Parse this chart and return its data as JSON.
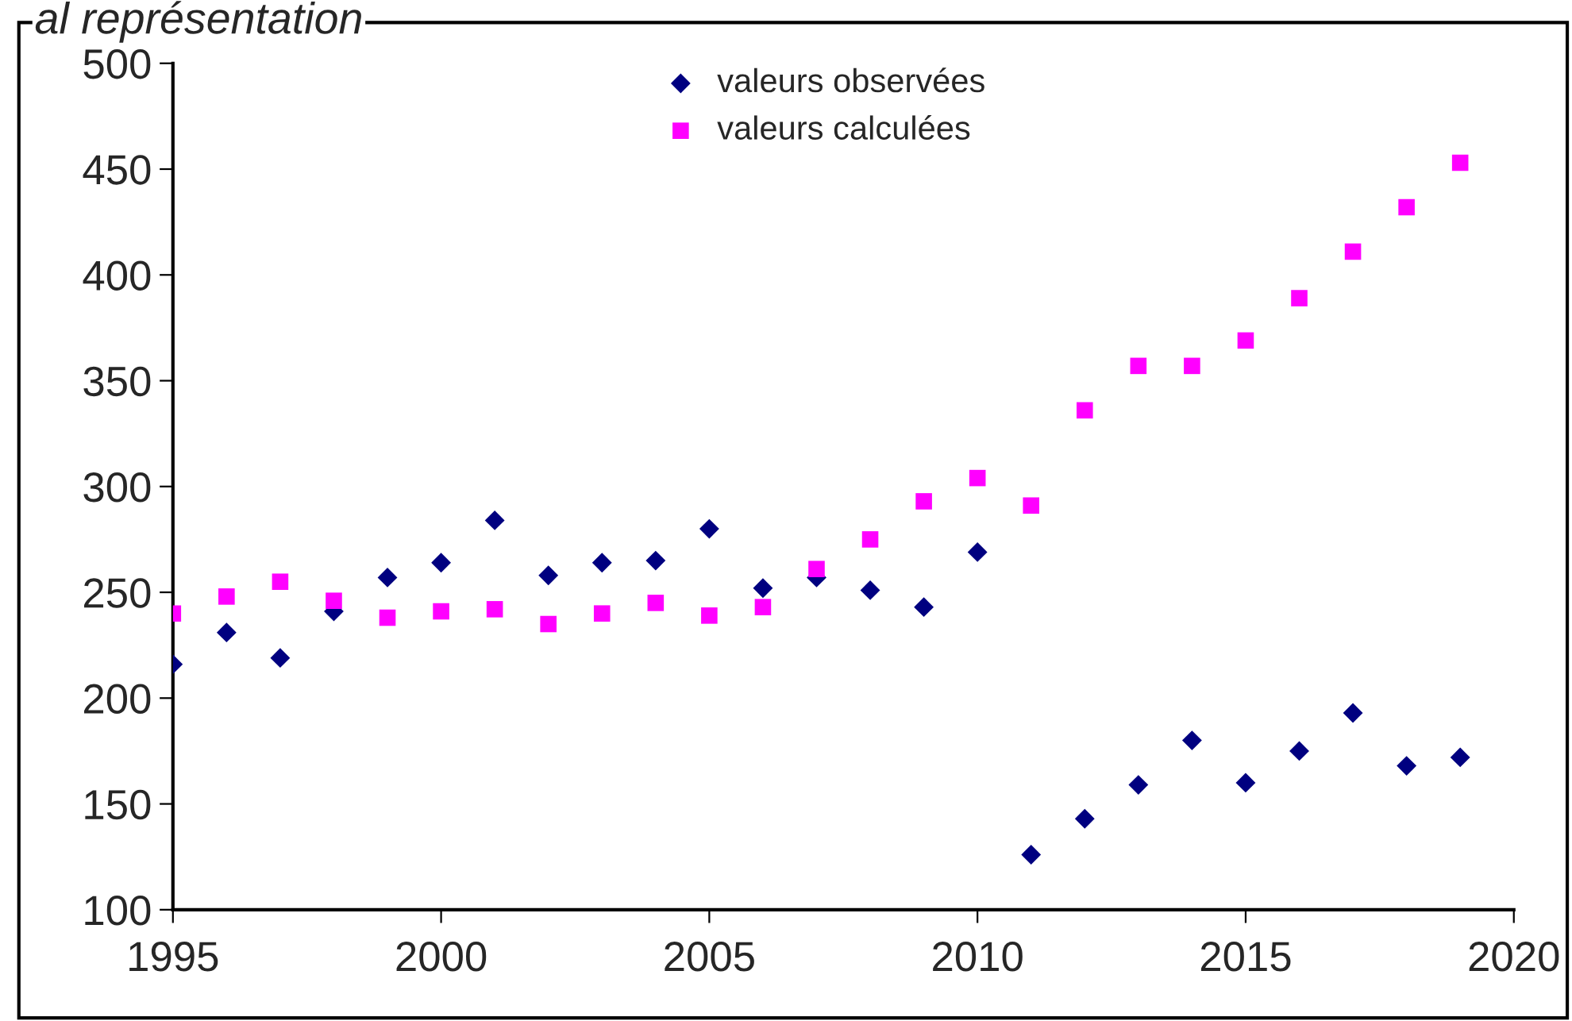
{
  "chart_data": {
    "type": "scatter",
    "title": "al représentation",
    "x": [
      1995,
      1996,
      1997,
      1998,
      1999,
      2000,
      2001,
      2002,
      2003,
      2004,
      2005,
      2006,
      2007,
      2008,
      2009,
      2010,
      2011,
      2012,
      2013,
      2014,
      2015,
      2016,
      2017,
      2018,
      2019
    ],
    "series": [
      {
        "name": "valeurs observées",
        "color": "#000080",
        "marker": "diamond",
        "values": [
          216,
          231,
          219,
          241,
          257,
          264,
          284,
          258,
          264,
          265,
          280,
          252,
          257,
          251,
          243,
          269,
          126,
          143,
          159,
          180,
          160,
          175,
          193,
          168,
          172
        ]
      },
      {
        "name": "valeurs calculées",
        "color": "#ff00ff",
        "marker": "square",
        "values": [
          240,
          248,
          255,
          246,
          238,
          241,
          242,
          235,
          240,
          245,
          239,
          243,
          261,
          275,
          293,
          304,
          291,
          336,
          357,
          357,
          369,
          389,
          411,
          432,
          453
        ]
      }
    ],
    "xlim": [
      1995,
      2020
    ],
    "xticks": [
      1995,
      2000,
      2005,
      2010,
      2015,
      2020
    ],
    "ylim": [
      100,
      500
    ],
    "yticks": [
      100,
      150,
      200,
      250,
      300,
      350,
      400,
      450,
      500
    ],
    "grid": false,
    "legend": "top"
  }
}
